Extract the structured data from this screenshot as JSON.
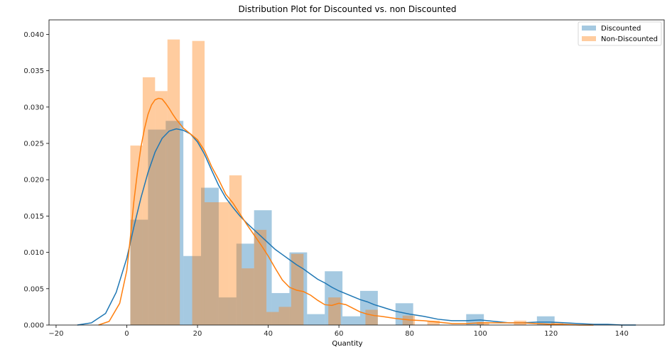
{
  "chart_data": {
    "type": "histogram",
    "title": "Distribution Plot for Discounted vs. non Discounted",
    "xlabel": "Quantity",
    "ylabel": "",
    "xlim": [
      -22,
      152
    ],
    "ylim": [
      0,
      0.042
    ],
    "x_ticks": [
      -20,
      0,
      20,
      40,
      60,
      80,
      100,
      120,
      140
    ],
    "y_ticks": [
      0.0,
      0.005,
      0.01,
      0.015,
      0.02,
      0.025,
      0.03,
      0.035,
      0.04
    ],
    "x_tick_labels": [
      "−20",
      "0",
      "20",
      "40",
      "60",
      "80",
      "100",
      "120",
      "140"
    ],
    "y_tick_labels": [
      "0.000",
      "0.005",
      "0.010",
      "0.015",
      "0.020",
      "0.025",
      "0.030",
      "0.035",
      "0.040"
    ],
    "legend_position": "top-right",
    "grid": false,
    "series": [
      {
        "name": "Discounted",
        "color": "#1f77b4",
        "bin_width": 5,
        "bins": [
          {
            "x0": 1,
            "h": 0.0145
          },
          {
            "x0": 6,
            "h": 0.0269
          },
          {
            "x0": 11,
            "h": 0.0281
          },
          {
            "x0": 16,
            "h": 0.0095
          },
          {
            "x0": 21,
            "h": 0.0189
          },
          {
            "x0": 26,
            "h": 0.0038
          },
          {
            "x0": 31,
            "h": 0.0112
          },
          {
            "x0": 36,
            "h": 0.0158
          },
          {
            "x0": 41,
            "h": 0.0044
          },
          {
            "x0": 46,
            "h": 0.01
          },
          {
            "x0": 51,
            "h": 0.0015
          },
          {
            "x0": 56,
            "h": 0.0074
          },
          {
            "x0": 61,
            "h": 0.0012
          },
          {
            "x0": 66,
            "h": 0.0047
          },
          {
            "x0": 71,
            "h": 0.0
          },
          {
            "x0": 76,
            "h": 0.003
          },
          {
            "x0": 81,
            "h": 0.0
          },
          {
            "x0": 86,
            "h": 0.0
          },
          {
            "x0": 91,
            "h": 0.0
          },
          {
            "x0": 96,
            "h": 0.0015
          },
          {
            "x0": 101,
            "h": 0.0
          },
          {
            "x0": 106,
            "h": 0.0
          },
          {
            "x0": 111,
            "h": 0.0
          },
          {
            "x0": 116,
            "h": 0.0012
          }
        ],
        "kde_x": [
          -14,
          -10,
          -6,
          -3,
          0,
          2,
          4,
          6,
          8,
          10,
          12,
          14,
          16,
          18,
          20,
          22,
          24,
          26,
          28,
          30,
          32,
          34,
          36,
          38,
          40,
          42,
          44,
          46,
          48,
          50,
          52,
          54,
          56,
          58,
          60,
          62,
          64,
          66,
          68,
          70,
          72,
          74,
          76,
          78,
          80,
          84,
          88,
          92,
          96,
          100,
          104,
          108,
          112,
          116,
          120,
          124,
          128,
          132,
          136,
          140,
          144
        ],
        "kde_y": [
          0.0,
          0.0003,
          0.0016,
          0.0045,
          0.0092,
          0.0135,
          0.0175,
          0.021,
          0.0238,
          0.0257,
          0.0267,
          0.027,
          0.0268,
          0.0263,
          0.0252,
          0.0235,
          0.0213,
          0.0192,
          0.0175,
          0.0162,
          0.015,
          0.014,
          0.0131,
          0.0122,
          0.0113,
          0.0104,
          0.0097,
          0.009,
          0.0083,
          0.0077,
          0.007,
          0.0063,
          0.0058,
          0.0052,
          0.0047,
          0.0043,
          0.0039,
          0.0035,
          0.0032,
          0.0028,
          0.0025,
          0.0022,
          0.0019,
          0.0017,
          0.0015,
          0.0012,
          0.0008,
          0.0006,
          0.0006,
          0.0007,
          0.0005,
          0.0003,
          0.0003,
          0.0004,
          0.0004,
          0.0003,
          0.0002,
          0.0001,
          0.0001,
          0.0,
          0.0
        ]
      },
      {
        "name": "Non-Discounted",
        "color": "#ff7f0e",
        "bin_width": 5,
        "bins": [
          {
            "x0": 1,
            "h": 0.0247
          },
          {
            "x0": 4.5,
            "h": 0.0341
          },
          {
            "x0": 8,
            "h": 0.0322
          },
          {
            "x0": 11.5,
            "h": 0.0393
          },
          {
            "x0": 15,
            "h": 0.0
          },
          {
            "x0": 18.5,
            "h": 0.0391
          },
          {
            "x0": 22,
            "h": 0.0169
          },
          {
            "x0": 25.5,
            "h": 0.0169
          },
          {
            "x0": 29,
            "h": 0.0206
          },
          {
            "x0": 32.5,
            "h": 0.0078
          },
          {
            "x0": 36,
            "h": 0.0131
          },
          {
            "x0": 39.5,
            "h": 0.0018
          },
          {
            "x0": 43,
            "h": 0.0025
          },
          {
            "x0": 46.5,
            "h": 0.0098
          },
          {
            "x0": 50,
            "h": 0.0
          },
          {
            "x0": 53.5,
            "h": 0.0
          },
          {
            "x0": 57,
            "h": 0.0038
          },
          {
            "x0": 60.5,
            "h": 0.0
          },
          {
            "x0": 64,
            "h": 0.0
          },
          {
            "x0": 67.5,
            "h": 0.0021
          },
          {
            "x0": 71,
            "h": 0.0
          },
          {
            "x0": 74.5,
            "h": 0.0
          },
          {
            "x0": 78,
            "h": 0.0013
          },
          {
            "x0": 81.5,
            "h": 0.0
          },
          {
            "x0": 85,
            "h": 0.0006
          },
          {
            "x0": 88.5,
            "h": 0.0
          },
          {
            "x0": 92,
            "h": 0.0
          },
          {
            "x0": 95.5,
            "h": 0.0
          },
          {
            "x0": 99,
            "h": 0.0004
          },
          {
            "x0": 102.5,
            "h": 0.0
          },
          {
            "x0": 106,
            "h": 0.0
          },
          {
            "x0": 109.5,
            "h": 0.0006
          },
          {
            "x0": 113,
            "h": 0.0
          },
          {
            "x0": 116.5,
            "h": 0.0
          },
          {
            "x0": 120,
            "h": 0.0004
          }
        ],
        "kde_x": [
          -8,
          -5,
          -2,
          0,
          1,
          2,
          3,
          4,
          5,
          6,
          7,
          8,
          9,
          10,
          11,
          12,
          13,
          14,
          16,
          18,
          20,
          22,
          24,
          26,
          28,
          30,
          32,
          34,
          36,
          38,
          40,
          42,
          44,
          46,
          48,
          50,
          52,
          54,
          56,
          58,
          60,
          62,
          64,
          66,
          68,
          70,
          72,
          76,
          80,
          84,
          88,
          92,
          96,
          100,
          104,
          108,
          112,
          116,
          120,
          124,
          128,
          132
        ],
        "kde_y": [
          0.0,
          0.0005,
          0.003,
          0.0075,
          0.012,
          0.017,
          0.021,
          0.0245,
          0.027,
          0.029,
          0.0303,
          0.031,
          0.0312,
          0.0311,
          0.0305,
          0.0298,
          0.029,
          0.0283,
          0.0271,
          0.0263,
          0.0255,
          0.024,
          0.0218,
          0.02,
          0.018,
          0.0168,
          0.0153,
          0.0138,
          0.0124,
          0.011,
          0.0095,
          0.0078,
          0.0062,
          0.0052,
          0.0048,
          0.0046,
          0.0041,
          0.0034,
          0.0028,
          0.0027,
          0.003,
          0.0028,
          0.0023,
          0.0018,
          0.0015,
          0.0013,
          0.0012,
          0.0009,
          0.0007,
          0.0006,
          0.0004,
          0.0002,
          0.0002,
          0.0003,
          0.0003,
          0.0003,
          0.0003,
          0.0002,
          0.0001,
          0.0001,
          0.0,
          0.0
        ]
      }
    ]
  }
}
